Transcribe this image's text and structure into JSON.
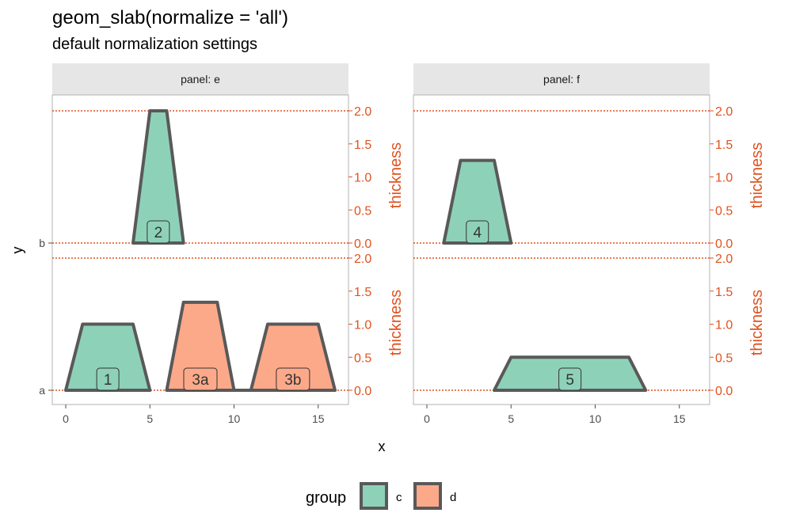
{
  "chart_data": {
    "type": "area",
    "title": "geom_slab(normalize = 'all')",
    "subtitle": "default normalization settings",
    "xlabel": "x",
    "ylabel": "y",
    "secondary_axis_label": "thickness",
    "xlim": [
      -0.8,
      16.8
    ],
    "x_ticks": [
      0,
      5,
      10,
      15
    ],
    "y_categories": [
      "a",
      "b"
    ],
    "thickness_ticks": [
      "0.0",
      "0.5",
      "1.0",
      "1.5",
      "2.0"
    ],
    "thickness_max": 2.0,
    "grid": false,
    "legend": {
      "title": "group",
      "position": "bottom",
      "items": [
        {
          "label": "c",
          "color": "#8ed1b9"
        },
        {
          "label": "d",
          "color": "#fca98a"
        }
      ]
    },
    "colors": {
      "c": "#8ed1b9",
      "d": "#fca98a",
      "outline": "#595959",
      "thickness_axis": "#e0521f",
      "strip_fill": "#e6e6e6",
      "panel_border": "#b3b3b3"
    },
    "panels": [
      {
        "strip": "panel: e",
        "slabs": [
          {
            "y": "b",
            "label": "2",
            "group": "c",
            "label_x": 5.5,
            "x": [
              4,
              5,
              6,
              7
            ],
            "thickness": [
              0,
              2.0,
              2.0,
              0
            ]
          },
          {
            "y": "a",
            "label": "1",
            "group": "c",
            "label_x": 2.5,
            "x": [
              0,
              1,
              4,
              5
            ],
            "thickness": [
              0,
              1.0,
              1.0,
              0
            ]
          },
          {
            "y": "a",
            "label": "3a",
            "group": "d",
            "label_x": 8.0,
            "x": [
              6,
              7,
              9,
              10
            ],
            "thickness": [
              0,
              1.33,
              1.33,
              0
            ]
          },
          {
            "y": "a",
            "label": "3b",
            "group": "d",
            "label_x": 13.5,
            "x": [
              11,
              12,
              15,
              16
            ],
            "thickness": [
              0,
              1.0,
              1.0,
              0
            ]
          }
        ],
        "baseline_segments": [
          {
            "y": "a",
            "x": [
              10,
              11
            ]
          }
        ]
      },
      {
        "strip": "panel: f",
        "slabs": [
          {
            "y": "b",
            "label": "4",
            "group": "c",
            "label_x": 3.0,
            "x": [
              1,
              2,
              4,
              5
            ],
            "thickness": [
              0,
              1.25,
              1.25,
              0
            ]
          },
          {
            "y": "a",
            "label": "5",
            "group": "c",
            "label_x": 8.5,
            "x": [
              4,
              5,
              12,
              13
            ],
            "thickness": [
              0,
              0.5,
              0.5,
              0
            ]
          }
        ],
        "baseline_segments": []
      }
    ]
  }
}
